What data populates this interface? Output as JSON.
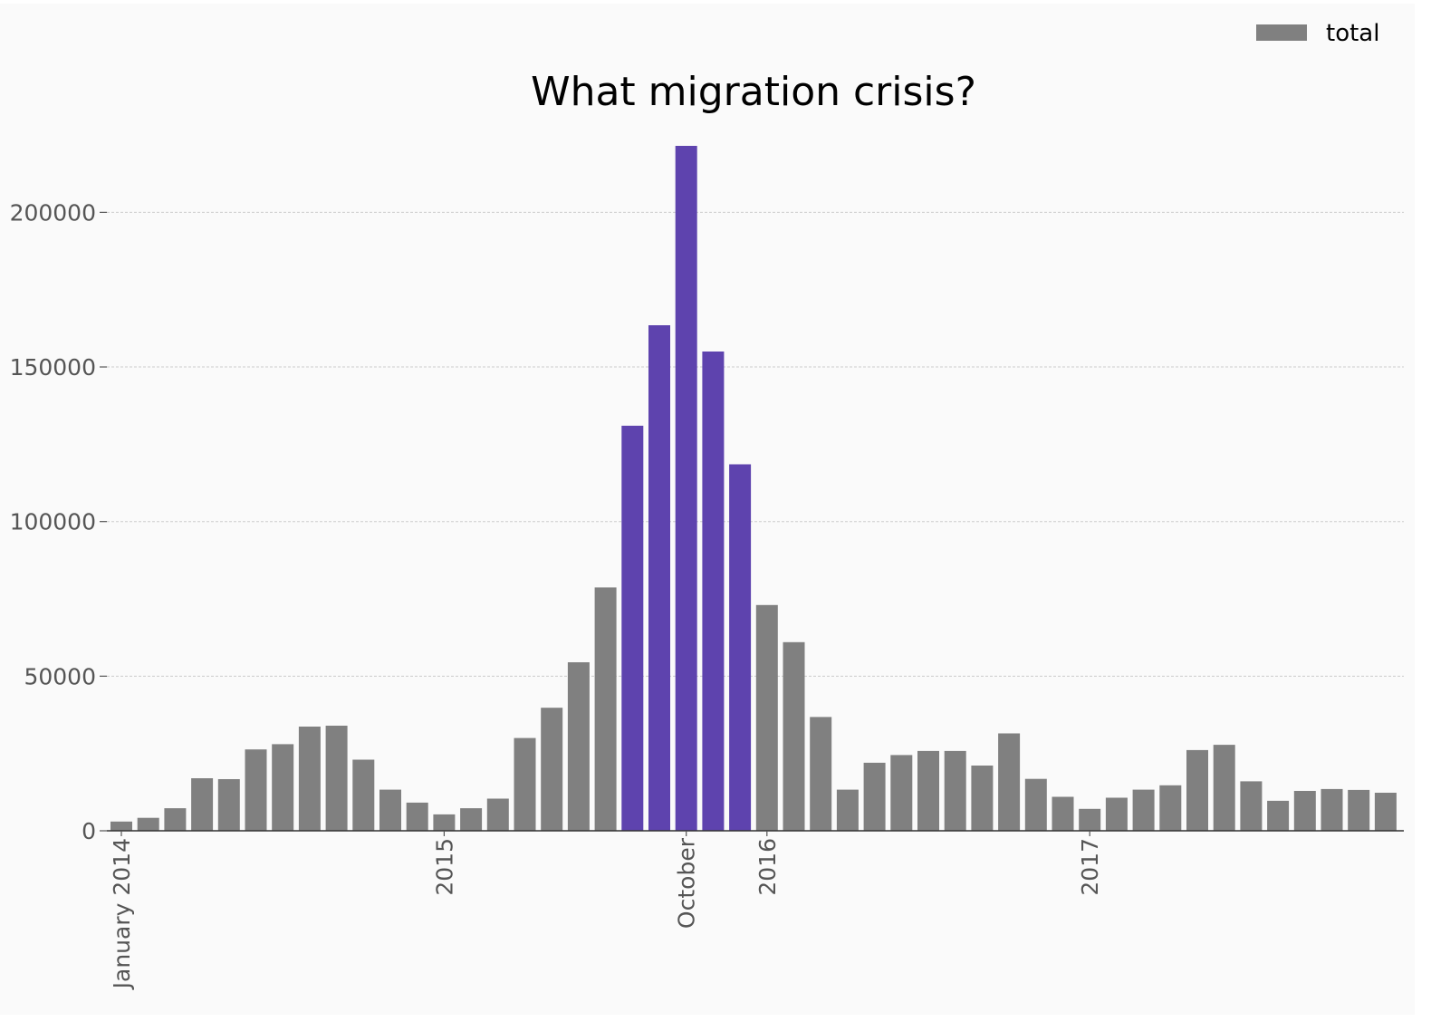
{
  "chart_data": {
    "type": "bar",
    "title": "What migration crisis?",
    "xlabel": "",
    "ylabel": "",
    "ylim": [
      0,
      230000
    ],
    "yticks": [
      0,
      50000,
      100000,
      150000,
      200000
    ],
    "grid": "y",
    "legend": {
      "placement": "top-right",
      "entries": [
        {
          "name": "total",
          "color": "#808080"
        }
      ]
    },
    "x_tick_labels": [
      {
        "label": "January 2014",
        "index": 0
      },
      {
        "label": "2015",
        "index": 12
      },
      {
        "label": "October",
        "index": 21
      },
      {
        "label": "2016",
        "index": 24
      },
      {
        "label": "2017",
        "index": 36
      }
    ],
    "categories": [
      "2014-01",
      "2014-02",
      "2014-03",
      "2014-04",
      "2014-05",
      "2014-06",
      "2014-07",
      "2014-08",
      "2014-09",
      "2014-10",
      "2014-11",
      "2014-12",
      "2015-01",
      "2015-02",
      "2015-03",
      "2015-04",
      "2015-05",
      "2015-06",
      "2015-07",
      "2015-08",
      "2015-09",
      "2015-10",
      "2015-11",
      "2015-12",
      "2016-01",
      "2016-02",
      "2016-03",
      "2016-04",
      "2016-05",
      "2016-06",
      "2016-07",
      "2016-08",
      "2016-09",
      "2016-10",
      "2016-11",
      "2016-12",
      "2017-01",
      "2017-02",
      "2017-03",
      "2017-04",
      "2017-05",
      "2017-06",
      "2017-07",
      "2017-08",
      "2017-09",
      "2017-10",
      "2017-11",
      "2017-12"
    ],
    "series": [
      {
        "name": "total",
        "color": "#808080",
        "highlight_color": "#5e43ae",
        "highlight_indices": [
          19,
          20,
          21,
          22,
          23
        ],
        "values": [
          3000,
          4200,
          7300,
          17000,
          16700,
          26300,
          28000,
          33700,
          34000,
          23000,
          13300,
          9100,
          5300,
          7300,
          10400,
          30000,
          39800,
          54500,
          78700,
          131000,
          163500,
          221500,
          155000,
          118500,
          73000,
          61000,
          36800,
          13300,
          22000,
          24500,
          25800,
          25800,
          21100,
          31500,
          16800,
          11000,
          7100,
          10700,
          13300,
          14700,
          26100,
          27800,
          16000,
          9700,
          12900,
          13500,
          13200,
          12300
        ]
      }
    ]
  }
}
